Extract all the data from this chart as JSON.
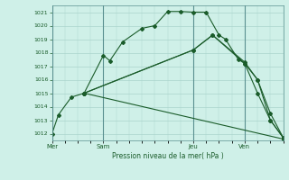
{
  "bg_color": "#cff0e8",
  "grid_color": "#aad4cc",
  "line_color": "#1a5c2a",
  "vline_color": "#5a9090",
  "xlabel": "Pression niveau de la mer( hPa )",
  "ylim": [
    1011.5,
    1021.5
  ],
  "yticks": [
    1012,
    1013,
    1014,
    1015,
    1016,
    1017,
    1018,
    1019,
    1020,
    1021
  ],
  "xtick_labels": [
    "Mer",
    "Sam",
    "Jeu",
    "Ven"
  ],
  "xtick_positions": [
    0,
    4,
    11,
    15
  ],
  "xlim": [
    0,
    18
  ],
  "series1_x": [
    0,
    0.5,
    1.5,
    2.5,
    4,
    4.5,
    5.5,
    7,
    8,
    9,
    10,
    11,
    12,
    13,
    13.5,
    14.5,
    15,
    16,
    17,
    18
  ],
  "series1_y": [
    1012.0,
    1013.4,
    1014.7,
    1015.0,
    1017.8,
    1017.4,
    1018.8,
    1019.8,
    1020.0,
    1021.05,
    1021.05,
    1021.0,
    1021.0,
    1019.3,
    1019.0,
    1017.5,
    1017.2,
    1015.0,
    1013.0,
    1011.7
  ],
  "series2_x": [
    2.5,
    11,
    12.5,
    15,
    16,
    17,
    18
  ],
  "series2_y": [
    1015.0,
    1018.2,
    1019.3,
    1017.2,
    1016.0,
    1013.0,
    1011.7
  ],
  "series3_x": [
    2.5,
    18
  ],
  "series3_y": [
    1015.0,
    1011.6
  ],
  "series4_x": [
    2.5,
    11,
    12.5,
    15,
    16,
    17,
    18
  ],
  "series4_y": [
    1015.0,
    1018.2,
    1019.3,
    1017.3,
    1016.0,
    1013.5,
    1011.7
  ]
}
